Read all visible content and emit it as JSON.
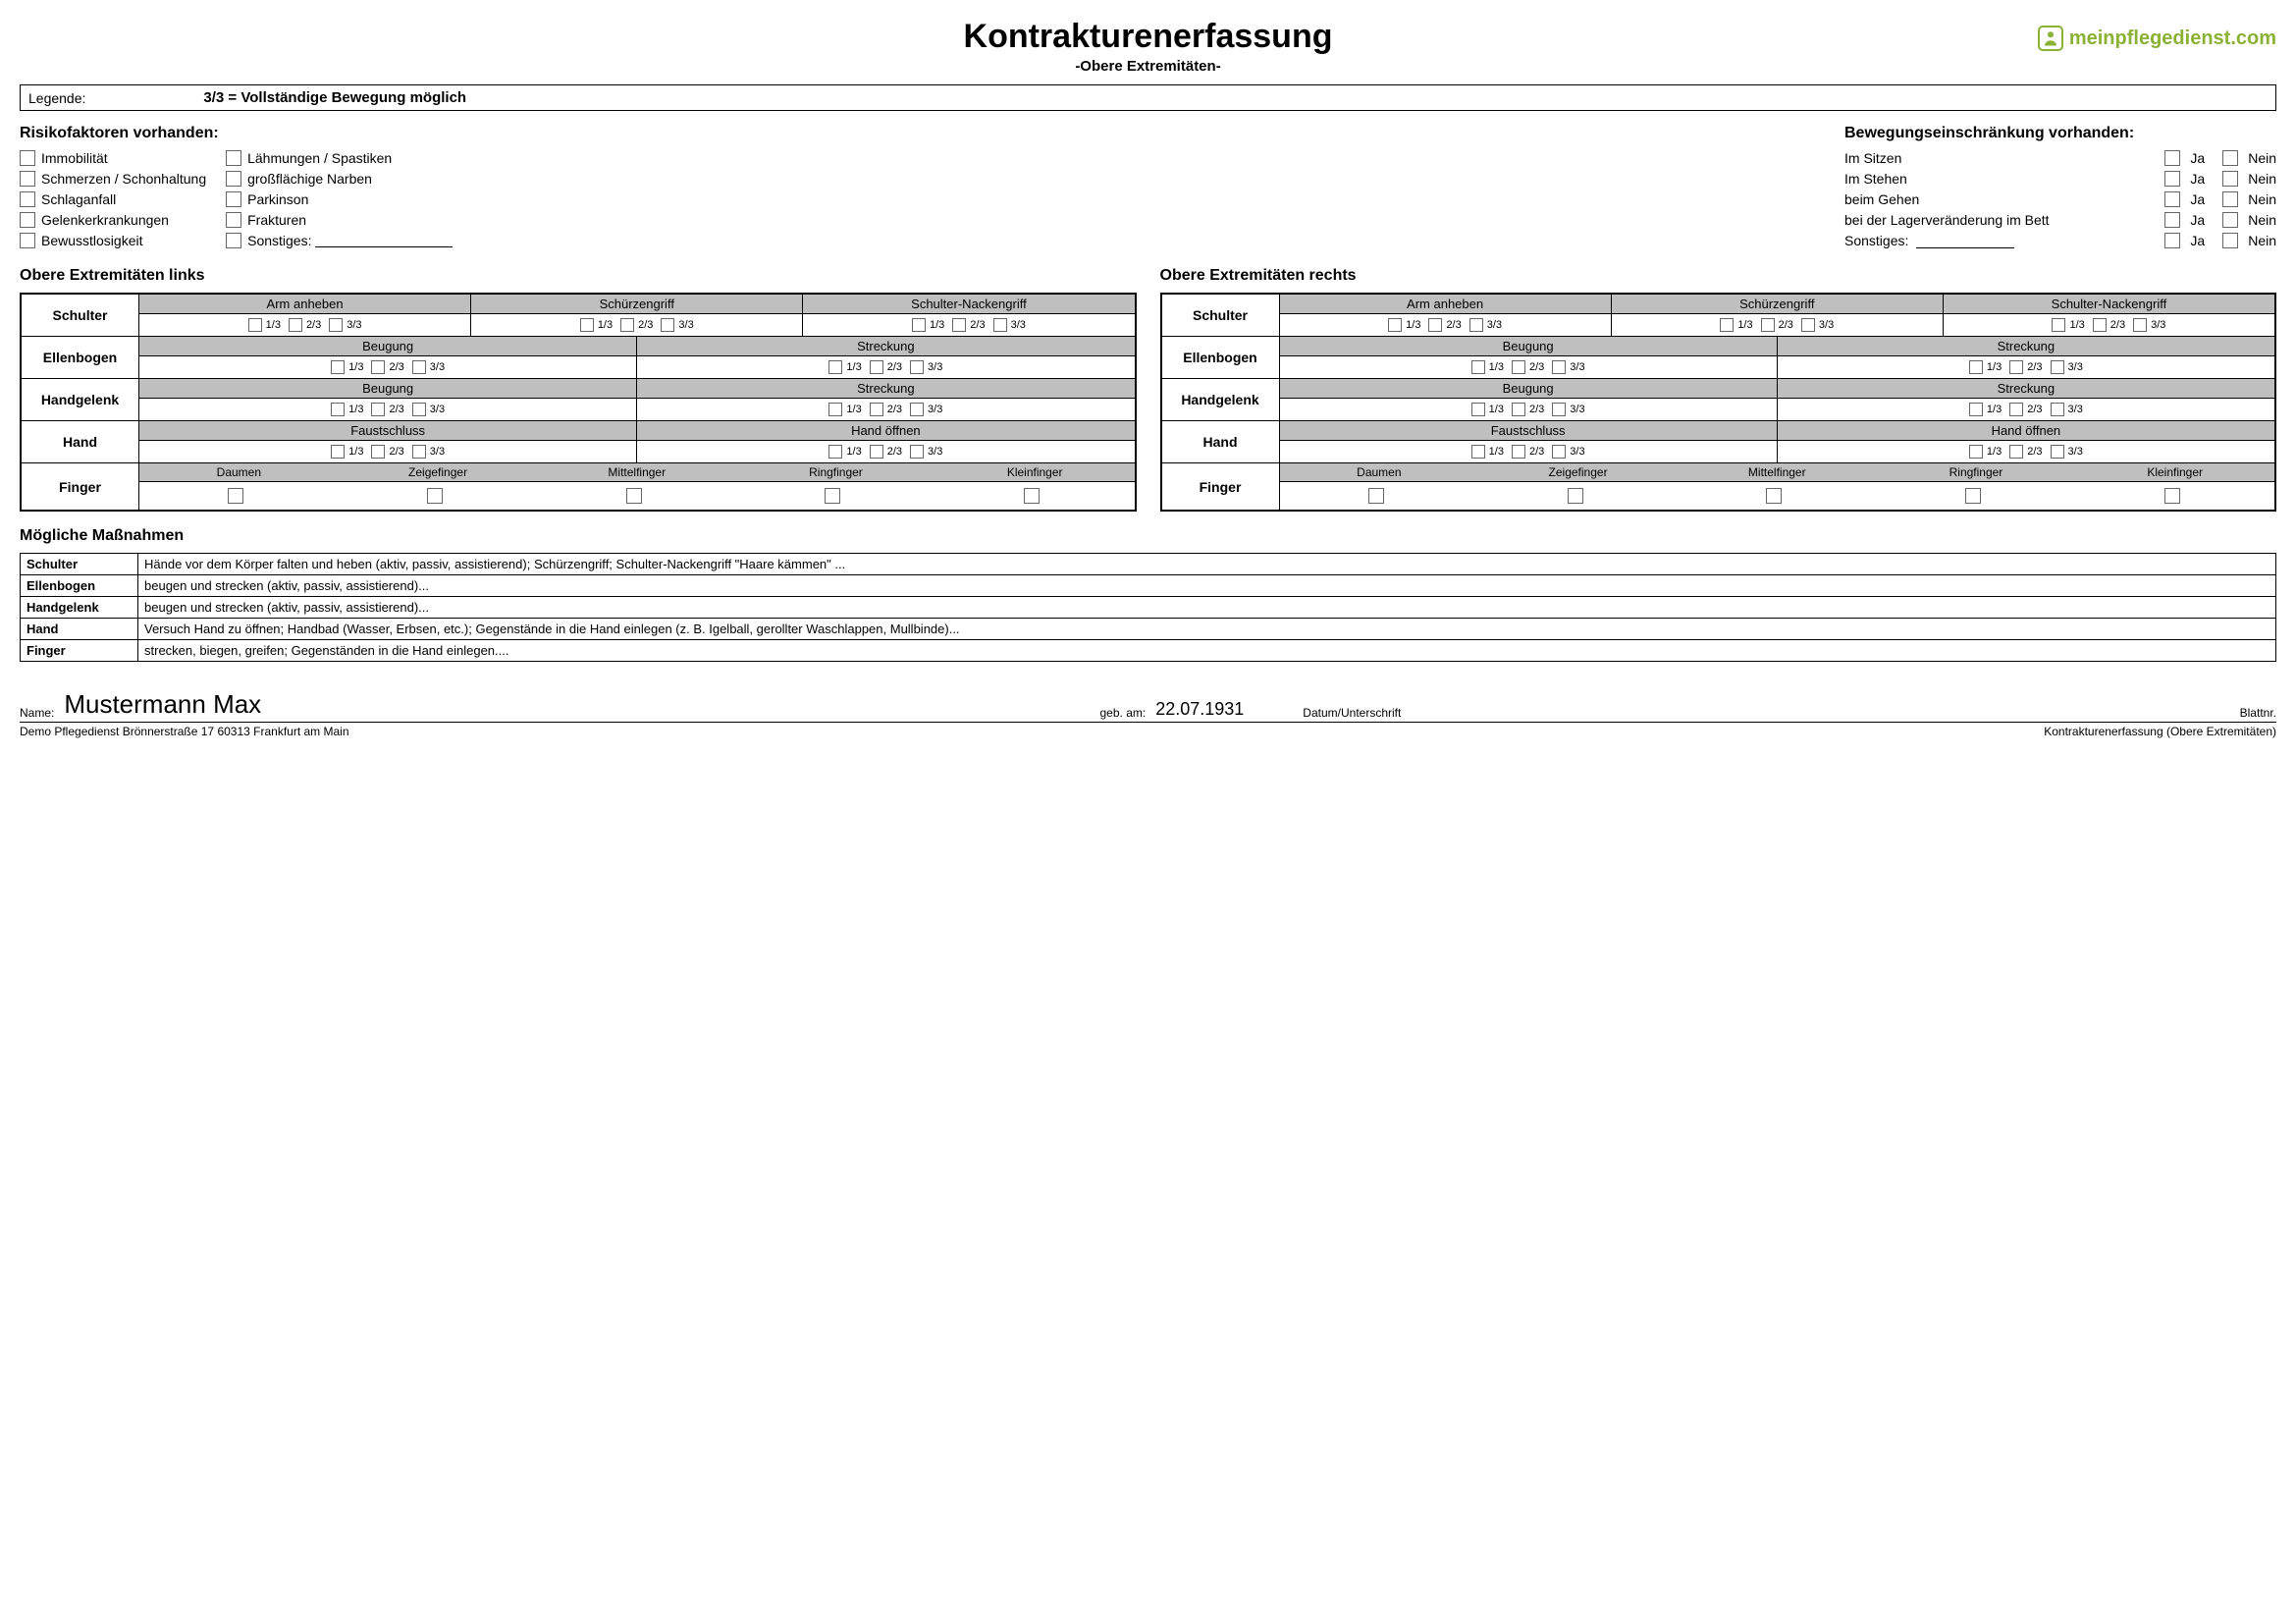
{
  "header": {
    "title": "Kontrakturenerfassung",
    "subtitle": "-Obere Extremitäten-",
    "logo_text": "meinpflegedienst.com"
  },
  "legend": {
    "label": "Legende:",
    "value": "3/3 = Vollständige Bewegung möglich"
  },
  "risk": {
    "heading": "Risikofaktoren vorhanden:",
    "col1": [
      "Immobilität",
      "Schmerzen / Schonhaltung",
      "Schlaganfall",
      "Gelenkerkrankungen",
      "Bewusstlosigkeit"
    ],
    "col2": [
      "Lähmungen / Spastiken",
      "großflächige Narben",
      "Parkinson",
      "Frakturen"
    ],
    "sonstiges": "Sonstiges:"
  },
  "restrict": {
    "heading": "Bewegungseinschränkung vorhanden:",
    "rows": [
      "Im Sitzen",
      "Im Stehen",
      "beim Gehen",
      "bei der Lagerveränderung im Bett"
    ],
    "sonstiges": "Sonstiges:",
    "ja": "Ja",
    "nein": "Nein"
  },
  "ext": {
    "left_heading": "Obere Extremitäten links",
    "right_heading": "Obere Extremitäten rechts",
    "joints": {
      "schulter": {
        "label": "Schulter",
        "moves": [
          "Arm anheben",
          "Schürzengriff",
          "Schulter-Nackengriff"
        ]
      },
      "ellenbogen": {
        "label": "Ellenbogen",
        "moves": [
          "Beugung",
          "Streckung"
        ]
      },
      "handgelenk": {
        "label": "Handgelenk",
        "moves": [
          "Beugung",
          "Streckung"
        ]
      },
      "hand": {
        "label": "Hand",
        "moves": [
          "Faustschluss",
          "Hand öffnen"
        ]
      },
      "finger": {
        "label": "Finger",
        "cols": [
          "Daumen",
          "Zeigefinger",
          "Mittelfinger",
          "Ringfinger",
          "Kleinfinger"
        ]
      }
    },
    "ratios": [
      "1/3",
      "2/3",
      "3/3"
    ]
  },
  "measures": {
    "heading": "Mögliche Maßnahmen",
    "rows": [
      {
        "joint": "Schulter",
        "text": "Hände vor dem Körper falten und heben (aktiv, passiv, assistierend); Schürzengriff; Schulter-Nackengriff \"Haare kämmen\" ..."
      },
      {
        "joint": "Ellenbogen",
        "text": "beugen und strecken (aktiv, passiv, assistierend)..."
      },
      {
        "joint": "Handgelenk",
        "text": "beugen und strecken (aktiv, passiv, assistierend)..."
      },
      {
        "joint": "Hand",
        "text": "Versuch Hand zu öffnen; Handbad (Wasser, Erbsen, etc.); Gegenstände in die Hand einlegen (z. B. Igelball, gerollter Waschlappen, Mullbinde)..."
      },
      {
        "joint": "Finger",
        "text": "strecken, biegen, greifen; Gegenständen in die Hand einlegen...."
      }
    ]
  },
  "footer": {
    "name_label": "Name:",
    "name_value": "Mustermann Max",
    "dob_label": "geb. am:",
    "dob_value": "22.07.1931",
    "sig_label": "Datum/Unterschrift",
    "blatt_label": "Blattnr.",
    "org_line": "Demo Pflegedienst   Brönnerstraße 17  60313 Frankfurt am Main",
    "doc_type": "Kontrakturenerfassung (Obere Extremitäten)"
  }
}
